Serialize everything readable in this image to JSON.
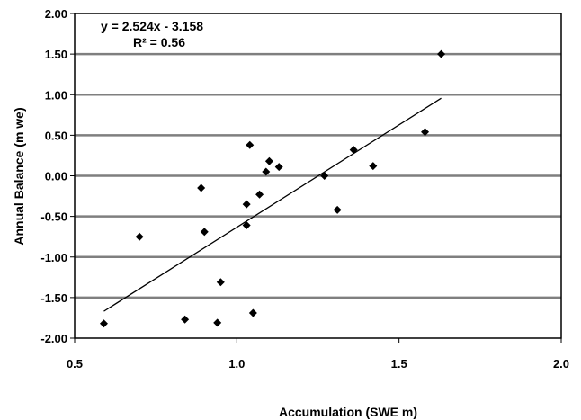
{
  "chart_data": {
    "type": "scatter",
    "title": "",
    "xlabel": "Accumulation (SWE m)",
    "ylabel": "Annual Balance (m we)",
    "xlim": [
      0.5,
      2.0
    ],
    "ylim": [
      -2.0,
      2.0
    ],
    "x_ticks": [
      "0.5",
      "1.0",
      "1.5",
      "2.0"
    ],
    "y_ticks": [
      "2.00",
      "1.50",
      "1.00",
      "0.50",
      "0.00",
      "-0.50",
      "-1.00",
      "-1.50",
      "-2.00"
    ],
    "grid": "horizontal",
    "marker": "diamond",
    "color": "#000000",
    "points": [
      {
        "x": 0.59,
        "y": -1.82
      },
      {
        "x": 0.7,
        "y": -0.75
      },
      {
        "x": 0.84,
        "y": -1.77
      },
      {
        "x": 0.89,
        "y": -0.15
      },
      {
        "x": 0.9,
        "y": -0.69
      },
      {
        "x": 0.94,
        "y": -1.81
      },
      {
        "x": 0.95,
        "y": -1.31
      },
      {
        "x": 1.03,
        "y": -0.61
      },
      {
        "x": 1.03,
        "y": -0.35
      },
      {
        "x": 1.04,
        "y": 0.38
      },
      {
        "x": 1.05,
        "y": -1.69
      },
      {
        "x": 1.07,
        "y": -0.23
      },
      {
        "x": 1.09,
        "y": 0.05
      },
      {
        "x": 1.1,
        "y": 0.18
      },
      {
        "x": 1.13,
        "y": 0.11
      },
      {
        "x": 1.27,
        "y": 0.0
      },
      {
        "x": 1.31,
        "y": -0.42
      },
      {
        "x": 1.36,
        "y": 0.32
      },
      {
        "x": 1.42,
        "y": 0.12
      },
      {
        "x": 1.58,
        "y": 0.54
      },
      {
        "x": 1.63,
        "y": 1.5
      }
    ],
    "trendline": {
      "slope": 2.524,
      "intercept": -3.158,
      "x_range": [
        0.59,
        1.63
      ]
    },
    "annotations": {
      "equation": "y = 2.524x - 3.158",
      "r_squared": "R² = 0.56"
    }
  }
}
